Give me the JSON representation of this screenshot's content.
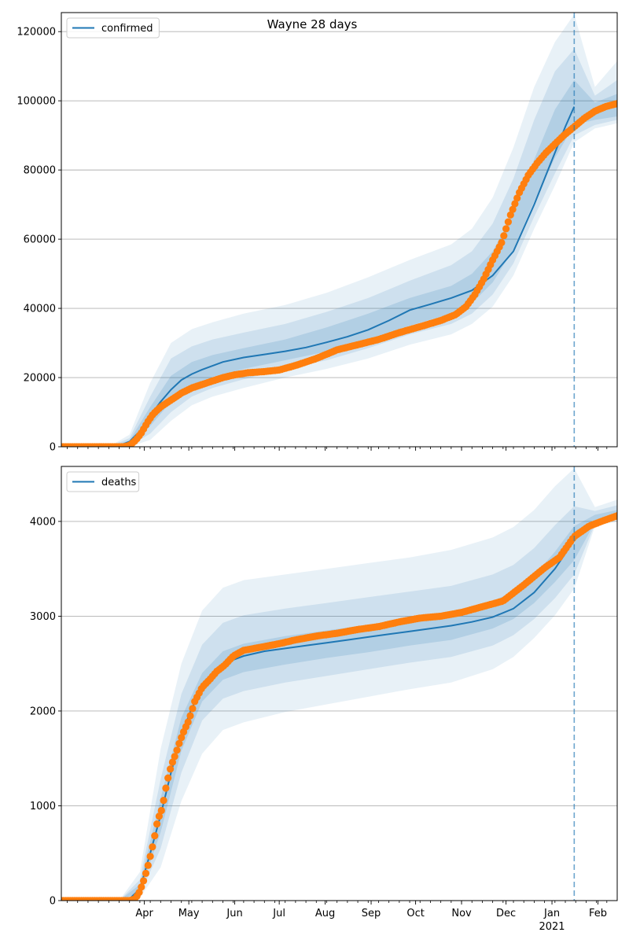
{
  "chart_data": [
    {
      "type": "line",
      "title": "Wayne 28 days",
      "legend": {
        "labels": [
          "confirmed"
        ],
        "placement": "top-left"
      },
      "grid": "y",
      "ylim": [
        0,
        125500
      ],
      "yticks": [
        0,
        20000,
        40000,
        60000,
        80000,
        100000,
        120000
      ],
      "ytick_labels": [
        "0",
        "20000",
        "40000",
        "60000",
        "80000",
        "100000",
        "120000"
      ],
      "xlim": [
        "2020-02-05",
        "2021-02-14"
      ],
      "forecast_start": "2021-01-16",
      "colors": {
        "line": "#1f77b4",
        "band": "#1f77b4",
        "observed": "#ff7f0e",
        "forecast_line": "#1f77b4"
      },
      "series": [
        {
          "name": "confirmed",
          "kind": "model",
          "x": [
            "2020-03-08",
            "2020-03-15",
            "2020-03-22",
            "2020-03-29",
            "2020-04-05",
            "2020-04-12",
            "2020-04-19",
            "2020-04-26",
            "2020-05-03",
            "2020-05-10",
            "2020-05-24",
            "2020-06-07",
            "2020-06-21",
            "2020-07-05",
            "2020-07-19",
            "2020-08-02",
            "2020-08-16",
            "2020-08-30",
            "2020-09-13",
            "2020-09-27",
            "2020-10-11",
            "2020-10-25",
            "2020-11-08",
            "2020-11-22",
            "2020-12-06",
            "2020-12-20",
            "2021-01-03",
            "2021-01-10",
            "2021-01-16"
          ],
          "y": [
            0,
            300,
            1500,
            4500,
            9000,
            13000,
            16500,
            19300,
            21000,
            22300,
            24500,
            25800,
            26700,
            27600,
            28700,
            30200,
            31800,
            33800,
            36500,
            39500,
            41200,
            43000,
            45200,
            49500,
            56500,
            70000,
            85000,
            92500,
            98300
          ]
        },
        {
          "name": "",
          "kind": "observed",
          "x": [
            "2020-03-08",
            "2020-03-18",
            "2020-03-22",
            "2020-03-26",
            "2020-03-30",
            "2020-04-03",
            "2020-04-07",
            "2020-04-12",
            "2020-04-19",
            "2020-04-26",
            "2020-05-03",
            "2020-05-10",
            "2020-05-17",
            "2020-05-24",
            "2020-06-01",
            "2020-06-10",
            "2020-06-20",
            "2020-07-01",
            "2020-07-12",
            "2020-07-26",
            "2020-08-09",
            "2020-08-23",
            "2020-09-06",
            "2020-09-20",
            "2020-10-04",
            "2020-10-18",
            "2020-10-28",
            "2020-11-04",
            "2020-11-10",
            "2020-11-16",
            "2020-11-22",
            "2020-11-28",
            "2020-12-04",
            "2020-12-10",
            "2020-12-16",
            "2020-12-22",
            "2020-12-28",
            "2021-01-03",
            "2021-01-09",
            "2021-01-16",
            "2021-01-23",
            "2021-01-30",
            "2021-02-06",
            "2021-02-14"
          ],
          "y": [
            0,
            0,
            400,
            1800,
            4000,
            7000,
            9500,
            11500,
            13500,
            15500,
            17000,
            18000,
            19000,
            20000,
            20800,
            21400,
            21700,
            22200,
            23500,
            25500,
            28000,
            29500,
            31000,
            33000,
            34700,
            36500,
            38200,
            40500,
            44000,
            48500,
            54000,
            59000,
            67000,
            73500,
            78500,
            82000,
            85000,
            87500,
            90000,
            92500,
            95000,
            97000,
            98300,
            99200
          ]
        }
      ],
      "bands": [
        {
          "x": [
            "2020-03-08",
            "2020-03-22",
            "2020-04-05",
            "2020-04-19",
            "2020-05-03",
            "2020-05-17",
            "2020-06-07",
            "2020-07-05",
            "2020-08-02",
            "2020-08-30",
            "2020-09-27",
            "2020-10-25",
            "2020-11-08",
            "2020-11-22",
            "2020-12-06",
            "2020-12-20",
            "2021-01-03",
            "2021-01-16",
            "2021-01-30",
            "2021-02-14"
          ],
          "low": [
            0,
            0,
            2000,
            7500,
            12000,
            14500,
            17000,
            20000,
            22500,
            25500,
            29500,
            32500,
            35500,
            40500,
            49500,
            63000,
            75500,
            88000,
            92000,
            93500
          ],
          "high": [
            0,
            3500,
            18500,
            30000,
            34000,
            36000,
            38500,
            41000,
            44500,
            49000,
            54000,
            58500,
            63000,
            72000,
            86500,
            104000,
            117000,
            125000,
            104000,
            111500
          ]
        },
        {
          "x": [
            "2020-03-08",
            "2020-03-22",
            "2020-04-05",
            "2020-04-19",
            "2020-05-03",
            "2020-05-17",
            "2020-06-07",
            "2020-07-05",
            "2020-08-02",
            "2020-08-30",
            "2020-09-27",
            "2020-10-25",
            "2020-11-08",
            "2020-11-22",
            "2020-12-06",
            "2020-12-20",
            "2021-01-03",
            "2021-01-16",
            "2021-01-30",
            "2021-02-14"
          ],
          "low": [
            0,
            200,
            3800,
            10000,
            14500,
            17000,
            19500,
            22500,
            25000,
            28500,
            32500,
            35500,
            38500,
            44000,
            53000,
            66500,
            79000,
            90000,
            93000,
            94500
          ],
          "high": [
            0,
            2500,
            14500,
            25500,
            29000,
            31000,
            33000,
            35500,
            39000,
            43000,
            48000,
            52500,
            56500,
            64500,
            77500,
            94500,
            108500,
            115000,
            101500,
            106000
          ]
        },
        {
          "x": [
            "2020-03-08",
            "2020-03-22",
            "2020-04-05",
            "2020-04-19",
            "2020-05-03",
            "2020-05-17",
            "2020-06-07",
            "2020-07-05",
            "2020-08-02",
            "2020-08-30",
            "2020-09-27",
            "2020-10-25",
            "2020-11-08",
            "2020-11-22",
            "2020-12-06",
            "2020-12-20",
            "2021-01-03",
            "2021-01-16",
            "2021-01-30",
            "2021-02-14"
          ],
          "low": [
            0,
            500,
            6000,
            13000,
            17500,
            20000,
            22500,
            25000,
            27500,
            31000,
            35000,
            38500,
            41500,
            47500,
            57000,
            71000,
            83500,
            93000,
            94500,
            95500
          ],
          "high": [
            0,
            1800,
            11500,
            20500,
            24500,
            26500,
            28500,
            31000,
            34500,
            38500,
            43000,
            46500,
            50000,
            56500,
            67500,
            83000,
            97500,
            106000,
            99500,
            102000
          ]
        }
      ]
    },
    {
      "type": "line",
      "title": "",
      "legend": {
        "labels": [
          "deaths"
        ],
        "placement": "top-left"
      },
      "grid": "y",
      "ylim": [
        0,
        4580
      ],
      "yticks": [
        0,
        1000,
        2000,
        3000,
        4000
      ],
      "ytick_labels": [
        "0",
        "1000",
        "2000",
        "3000",
        "4000"
      ],
      "xlim": [
        "2020-02-05",
        "2021-02-14"
      ],
      "xticks": [
        "2020-04-01",
        "2020-05-01",
        "2020-06-01",
        "2020-07-01",
        "2020-08-01",
        "2020-09-01",
        "2020-10-01",
        "2020-11-01",
        "2020-12-01",
        "2021-01-01",
        "2021-02-01"
      ],
      "xtick_labels": [
        "Apr",
        "May",
        "Jun",
        "Jul",
        "Aug",
        "Sep",
        "Oct",
        "Nov",
        "Dec",
        "Jan",
        "Feb"
      ],
      "year_label": "2021",
      "forecast_start": "2021-01-16",
      "colors": {
        "line": "#1f77b4",
        "band": "#1f77b4",
        "observed": "#ff7f0e",
        "forecast_line": "#1f77b4"
      },
      "series": [
        {
          "name": "deaths",
          "kind": "model",
          "x": [
            "2020-03-15",
            "2020-03-22",
            "2020-03-29",
            "2020-04-05",
            "2020-04-12",
            "2020-04-19",
            "2020-04-26",
            "2020-05-03",
            "2020-05-10",
            "2020-05-17",
            "2020-05-24",
            "2020-05-31",
            "2020-06-07",
            "2020-06-21",
            "2020-07-05",
            "2020-07-19",
            "2020-08-02",
            "2020-08-16",
            "2020-08-30",
            "2020-09-13",
            "2020-09-27",
            "2020-10-11",
            "2020-10-25",
            "2020-11-08",
            "2020-11-22",
            "2020-12-06",
            "2020-12-20",
            "2021-01-03",
            "2021-01-16"
          ],
          "y": [
            0,
            20,
            120,
            500,
            900,
            1350,
            1750,
            2030,
            2230,
            2380,
            2470,
            2540,
            2580,
            2630,
            2660,
            2690,
            2720,
            2750,
            2780,
            2810,
            2840,
            2870,
            2900,
            2940,
            2990,
            3080,
            3250,
            3500,
            3800
          ]
        },
        {
          "name": "",
          "kind": "observed",
          "x": [
            "2020-03-15",
            "2020-03-22",
            "2020-03-26",
            "2020-03-29",
            "2020-04-01",
            "2020-04-04",
            "2020-04-07",
            "2020-04-10",
            "2020-04-13",
            "2020-04-16",
            "2020-04-19",
            "2020-04-22",
            "2020-04-25",
            "2020-04-28",
            "2020-05-01",
            "2020-05-05",
            "2020-05-10",
            "2020-05-15",
            "2020-05-20",
            "2020-05-25",
            "2020-05-31",
            "2020-06-07",
            "2020-06-14",
            "2020-06-21",
            "2020-07-01",
            "2020-07-12",
            "2020-07-26",
            "2020-08-09",
            "2020-08-23",
            "2020-09-06",
            "2020-09-20",
            "2020-10-04",
            "2020-10-18",
            "2020-11-01",
            "2020-11-15",
            "2020-11-29",
            "2020-12-13",
            "2020-12-27",
            "2021-01-06",
            "2021-01-16",
            "2021-01-26",
            "2021-02-05",
            "2021-02-14"
          ],
          "y": [
            0,
            0,
            20,
            100,
            230,
            400,
            600,
            850,
            970,
            1230,
            1420,
            1540,
            1680,
            1800,
            1900,
            2100,
            2250,
            2330,
            2420,
            2480,
            2580,
            2640,
            2660,
            2680,
            2710,
            2750,
            2790,
            2820,
            2860,
            2890,
            2940,
            2980,
            3000,
            3040,
            3100,
            3160,
            3330,
            3510,
            3620,
            3840,
            3950,
            4010,
            4060
          ]
        }
      ],
      "bands": [
        {
          "x": [
            "2020-03-15",
            "2020-03-29",
            "2020-04-12",
            "2020-04-26",
            "2020-05-10",
            "2020-05-24",
            "2020-06-07",
            "2020-07-05",
            "2020-08-02",
            "2020-08-30",
            "2020-09-27",
            "2020-10-25",
            "2020-11-22",
            "2020-12-06",
            "2020-12-20",
            "2021-01-03",
            "2021-01-16",
            "2021-01-30",
            "2021-02-14"
          ],
          "low": [
            0,
            30,
            350,
            1050,
            1550,
            1800,
            1880,
            1990,
            2070,
            2150,
            2230,
            2300,
            2440,
            2570,
            2770,
            3010,
            3290,
            3950,
            4000
          ],
          "high": [
            0,
            300,
            1600,
            2500,
            3060,
            3300,
            3380,
            3440,
            3500,
            3560,
            3620,
            3700,
            3830,
            3940,
            4120,
            4370,
            4560,
            4150,
            4230
          ]
        },
        {
          "x": [
            "2020-03-15",
            "2020-03-29",
            "2020-04-12",
            "2020-04-26",
            "2020-05-10",
            "2020-05-24",
            "2020-06-07",
            "2020-07-05",
            "2020-08-02",
            "2020-08-30",
            "2020-09-27",
            "2020-10-25",
            "2020-11-22",
            "2020-12-06",
            "2020-12-20",
            "2021-01-03",
            "2021-01-16",
            "2021-01-30",
            "2021-02-14"
          ],
          "low": [
            0,
            60,
            550,
            1350,
            1900,
            2130,
            2210,
            2300,
            2370,
            2440,
            2510,
            2570,
            2690,
            2800,
            2970,
            3190,
            3440,
            3970,
            4020
          ],
          "high": [
            0,
            220,
            1280,
            2180,
            2700,
            2930,
            3010,
            3080,
            3140,
            3200,
            3260,
            3320,
            3440,
            3540,
            3720,
            3960,
            4160,
            4110,
            4170
          ]
        },
        {
          "x": [
            "2020-03-15",
            "2020-03-29",
            "2020-04-12",
            "2020-04-26",
            "2020-05-10",
            "2020-05-24",
            "2020-06-07",
            "2020-07-05",
            "2020-08-02",
            "2020-08-30",
            "2020-09-27",
            "2020-10-25",
            "2020-11-22",
            "2020-12-06",
            "2020-12-20",
            "2021-01-03",
            "2021-01-16",
            "2021-01-30",
            "2021-02-14"
          ],
          "low": [
            0,
            90,
            720,
            1580,
            2100,
            2330,
            2410,
            2490,
            2560,
            2620,
            2690,
            2750,
            2870,
            2970,
            3140,
            3360,
            3590,
            3990,
            4040
          ],
          "high": [
            0,
            170,
            1080,
            1930,
            2400,
            2630,
            2710,
            2790,
            2850,
            2910,
            2970,
            3030,
            3160,
            3260,
            3430,
            3680,
            3950,
            4070,
            4120
          ]
        }
      ]
    }
  ]
}
